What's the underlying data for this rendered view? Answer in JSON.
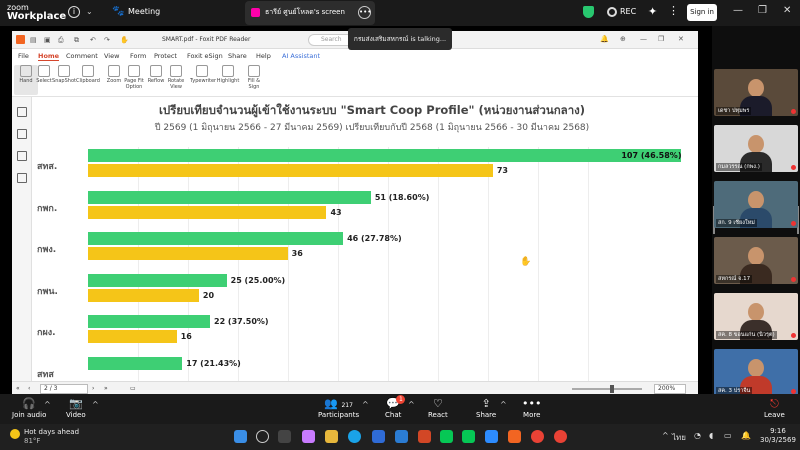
{
  "zoom": {
    "logo_line1": "zoom",
    "logo_line2": "Workplace",
    "meeting_label": "Meeting",
    "share_tab": "ธารีย์ ศูนย์โหลด's screen",
    "rec_label": "REC",
    "signin_label": "Sign in",
    "talking_tooltip": "กรมส่งเสริมสหกรณ์ is talking..."
  },
  "foxit": {
    "filename": "SMART.pdf - Foxit PDF Reader",
    "search_placeholder": "Search",
    "menu": [
      "File",
      "Home",
      "Comment",
      "View",
      "Form",
      "Protect",
      "Foxit eSign",
      "Share",
      "Help",
      "AI Assistant"
    ],
    "ribbon": [
      "Hand",
      "Select",
      "SnapShot",
      "Clipboard",
      "Zoom",
      "Page Fit Option",
      "Reflow",
      "Rotate View",
      "Typewriter",
      "Highlight",
      "Fill & Sign"
    ],
    "page_indicator": "2 / 3",
    "zoom_value": "200%"
  },
  "chart_data": {
    "type": "bar",
    "orientation": "horizontal",
    "title": "เปรียบเทียบจำนวนผู้เข้าใช้งานระบบ \"Smart Coop Profile\" (หน่วยงานส่วนกลาง)",
    "subtitle": "ปี 2569 (1 มิถุนายน 2566 - 27 มีนาคม 2569) เปรียบเทียบกับปี 2568 (1 มิถุนายน 2566 - 30 มีนาคม 2568)",
    "categories": [
      "สทส.",
      "กพก.",
      "กพง.",
      "กพน.",
      "กผง.",
      "สทส"
    ],
    "series": [
      {
        "values": [
          107,
          51,
          46,
          25,
          22,
          17
        ],
        "labels": [
          "107 (46.58%)",
          "51 (18.60%)",
          "46 (27.78%)",
          "25 (25.00%)",
          "22 (37.50%)",
          "17 (21.43%)"
        ],
        "color": "#3ecf74"
      },
      {
        "values": [
          73,
          43,
          36,
          20,
          16,
          null
        ],
        "labels": [
          "73",
          "43",
          "36",
          "20",
          "16",
          ""
        ],
        "color": "#f5c518"
      }
    ],
    "xlim": [
      0,
      110
    ],
    "grid": true
  },
  "participants": [
    {
      "name": "เดชา ปทุมพร"
    },
    {
      "name": "กมลวรรณ (กพง.)"
    },
    {
      "name": "สก. 9 เชียงใหม่"
    },
    {
      "name": "สหกรณ์ จ.17"
    },
    {
      "name": "สค. 8 ขอนแก่น (นิวรุต)"
    },
    {
      "name": "สค. 3 ปราจีน"
    }
  ],
  "toolbar": {
    "join_audio": "Join audio",
    "video": "Video",
    "participants": "Participants",
    "participants_count": "217",
    "chat": "Chat",
    "chat_badge": "1",
    "react": "React",
    "share": "Share",
    "more": "More",
    "leave": "Leave"
  },
  "taskbar": {
    "weather_title": "Hot days ahead",
    "weather_temp": "81°F",
    "lang": "ไทย",
    "time": "9:16",
    "date": "30/3/2569"
  }
}
